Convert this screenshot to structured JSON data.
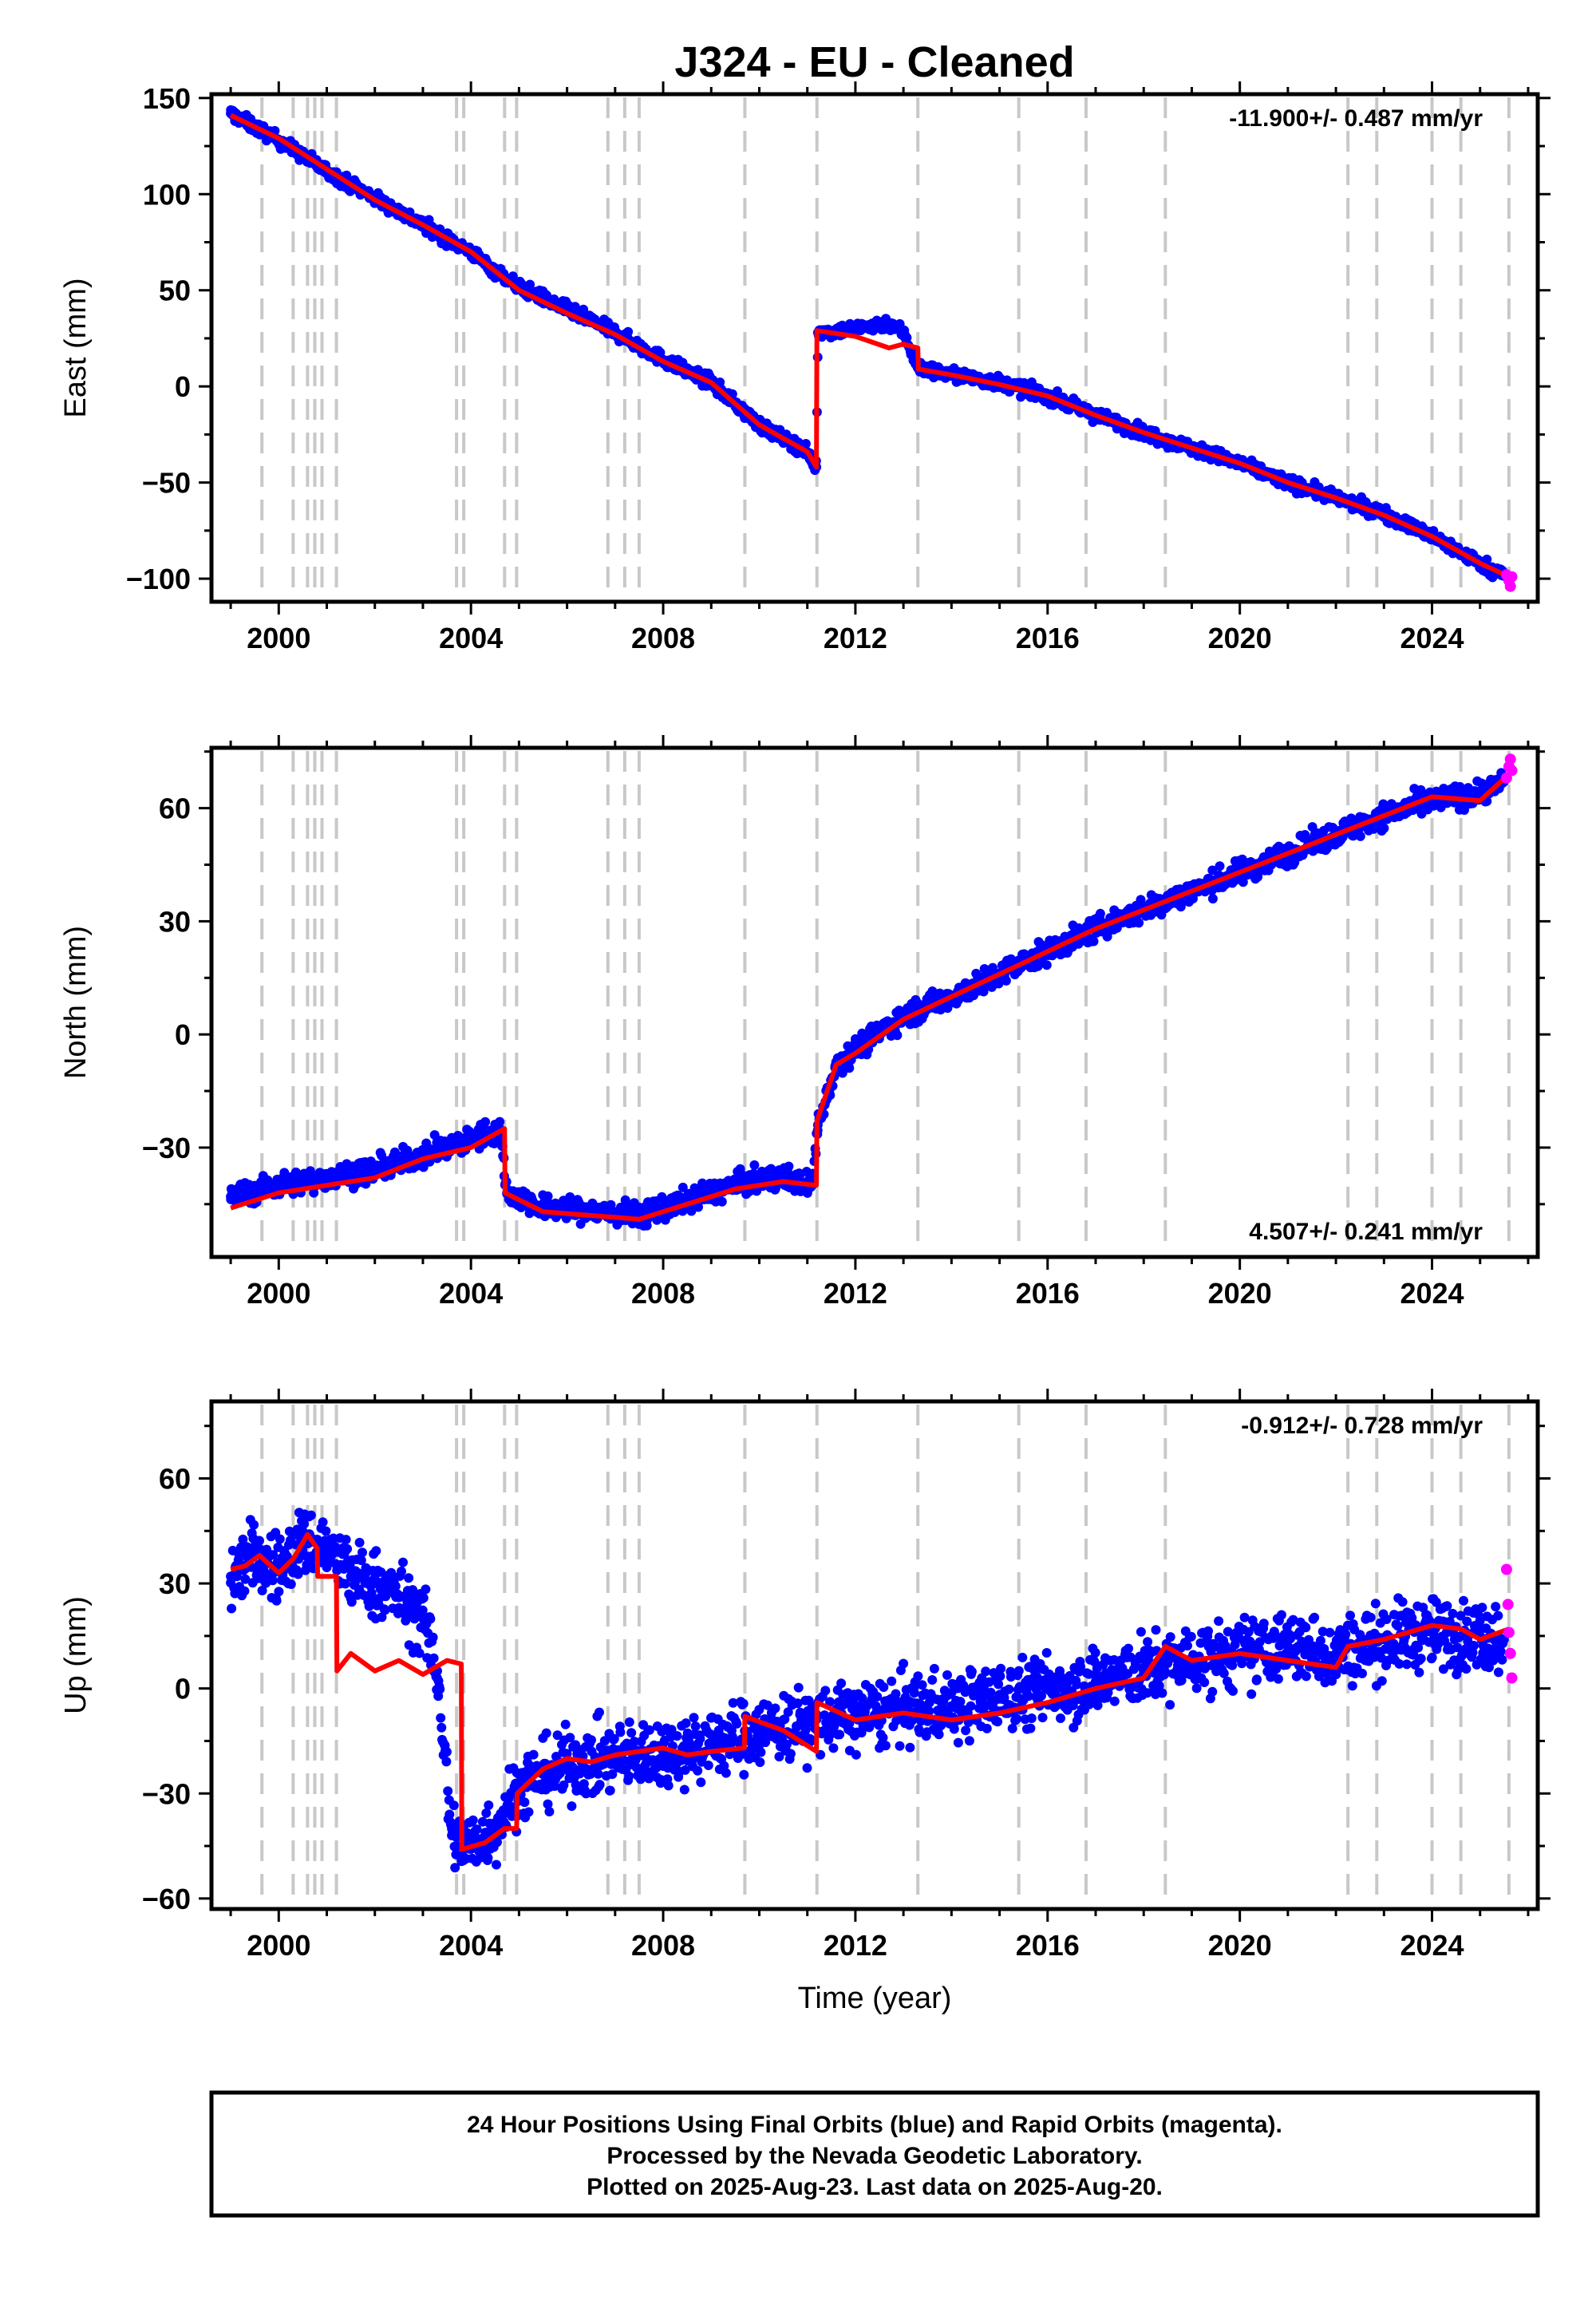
{
  "title": "J324  - EU - Cleaned",
  "xlabel": "Time (year)",
  "footer": {
    "line1": "24 Hour Positions Using Final Orbits (blue) and Rapid Orbits (magenta).",
    "line2": "Processed by the Nevada Geodetic Laboratory.",
    "line3": "Plotted on 2025-Aug-23. Last data on 2025-Aug-20."
  },
  "colors": {
    "final": "#0000ff",
    "rapid": "#ff00ff",
    "model": "#ff0000",
    "steps": "#c8c8c8"
  },
  "chart_data": [
    {
      "type": "scatter",
      "name": "east",
      "ylabel": "East (mm)",
      "rate": "-11.900+/- 0.487 mm/yr",
      "rate_position": "top-right",
      "xlim": [
        1998.6,
        2026.2
      ],
      "ylim": [
        -112,
        152
      ],
      "xticks": [
        2000,
        2004,
        2008,
        2012,
        2016,
        2020,
        2024
      ],
      "yticks": [
        -100,
        -50,
        0,
        50,
        100,
        150
      ],
      "yticklabels": [
        "−100",
        "−50",
        "0",
        "50",
        "100",
        "150"
      ],
      "step_epochs": [
        1999.65,
        2000.3,
        2000.6,
        2000.75,
        2000.9,
        2001.2,
        2003.7,
        2003.85,
        2004.7,
        2004.95,
        2006.85,
        2007.2,
        2007.5,
        2009.7,
        2011.2,
        2013.3,
        2015.4,
        2016.8,
        2018.45,
        2022.25,
        2022.85,
        2024.0,
        2024.6,
        2025.6
      ],
      "series": [
        {
          "name": "Final Orbits (blue)",
          "x": [
            1999.0,
            2000.0,
            2001.0,
            2002.0,
            2003.0,
            2004.0,
            2004.5,
            2005.0,
            2006.0,
            2007.0,
            2008.0,
            2009.0,
            2010.0,
            2011.0,
            2011.19,
            2011.22,
            2012.0,
            2012.7,
            2013.0,
            2013.3,
            2014.0,
            2015.0,
            2016.0,
            2017.0,
            2018.0,
            2019.0,
            2020.0,
            2021.0,
            2022.0,
            2023.0,
            2024.0,
            2025.0,
            2025.5
          ],
          "y": [
            142,
            128,
            112,
            98,
            84,
            70,
            60,
            52,
            40,
            28,
            14,
            2,
            -20,
            -34,
            -42,
            28,
            30,
            33,
            28,
            10,
            6,
            2,
            -5,
            -15,
            -24,
            -32,
            -40,
            -50,
            -58,
            -66,
            -78,
            -92,
            -98
          ]
        },
        {
          "name": "Rapid Orbits (magenta)",
          "x": [
            2025.55,
            2025.6,
            2025.63,
            2025.66
          ],
          "y": [
            -98,
            -101,
            -104,
            -99
          ]
        },
        {
          "name": "model",
          "x": [
            1999.0,
            2000.0,
            2001.0,
            2002.0,
            2003.0,
            2004.0,
            2004.5,
            2005.0,
            2006.0,
            2007.0,
            2008.0,
            2009.0,
            2010.0,
            2011.0,
            2011.19,
            2011.2,
            2012.0,
            2012.7,
            2013.0,
            2013.3,
            2013.31,
            2014.0,
            2015.0,
            2016.0,
            2017.0,
            2018.0,
            2019.0,
            2020.0,
            2021.0,
            2022.0,
            2023.0,
            2024.0,
            2025.0,
            2025.6
          ],
          "y": [
            141,
            129,
            113,
            97,
            84,
            70,
            60,
            50,
            38,
            27,
            13,
            2,
            -20,
            -34,
            -42,
            29,
            26,
            20,
            22,
            20,
            9,
            6,
            1,
            -5,
            -15,
            -24,
            -32,
            -40,
            -50,
            -58,
            -67,
            -78,
            -92,
            -99
          ]
        }
      ]
    },
    {
      "type": "scatter",
      "name": "north",
      "ylabel": "North (mm)",
      "rate": "4.507+/- 0.241 mm/yr",
      "rate_position": "bottom-right",
      "xlim": [
        1998.6,
        2026.2
      ],
      "ylim": [
        -59,
        76
      ],
      "xticks": [
        2000,
        2004,
        2008,
        2012,
        2016,
        2020,
        2024
      ],
      "yticks": [
        -30,
        0,
        30,
        60
      ],
      "yticklabels": [
        "−30",
        "0",
        "30",
        "60"
      ],
      "step_epochs": [
        1999.65,
        2000.3,
        2000.6,
        2000.75,
        2000.9,
        2001.2,
        2003.7,
        2003.85,
        2004.7,
        2004.95,
        2006.85,
        2007.2,
        2007.5,
        2009.7,
        2011.2,
        2013.3,
        2015.4,
        2016.8,
        2018.45,
        2022.25,
        2022.85,
        2024.0,
        2024.6,
        2025.6
      ],
      "series": [
        {
          "name": "Final Orbits (blue)",
          "x": [
            1999.0,
            2000.0,
            2001.0,
            2002.0,
            2003.0,
            2004.0,
            2004.6,
            2004.75,
            2005.5,
            2006.5,
            2007.5,
            2008.5,
            2009.5,
            2010.5,
            2011.1,
            2011.22,
            2011.6,
            2012.0,
            2013.0,
            2014.0,
            2015.0,
            2016.0,
            2017.0,
            2018.0,
            2019.0,
            2020.0,
            2021.0,
            2022.0,
            2023.0,
            2024.0,
            2025.0,
            2025.5
          ],
          "y": [
            -43,
            -40,
            -38,
            -36,
            -32,
            -28,
            -25,
            -42,
            -46,
            -47,
            -48,
            -44,
            -40,
            -38,
            -40,
            -24,
            -8,
            -4,
            5,
            10,
            16,
            22,
            28,
            33,
            38,
            43,
            48,
            53,
            58,
            62,
            64,
            67
          ]
        },
        {
          "name": "Rapid Orbits (magenta)",
          "x": [
            2025.55,
            2025.6,
            2025.63,
            2025.66
          ],
          "y": [
            68,
            71,
            73,
            70
          ]
        },
        {
          "name": "model",
          "x": [
            1999.0,
            2000.0,
            2001.0,
            2002.0,
            2003.0,
            2004.0,
            2004.7,
            2004.71,
            2005.5,
            2006.5,
            2007.5,
            2008.5,
            2009.5,
            2010.5,
            2011.19,
            2011.2,
            2011.6,
            2012.0,
            2013.0,
            2014.0,
            2015.0,
            2016.0,
            2017.0,
            2018.0,
            2019.0,
            2020.0,
            2021.0,
            2022.0,
            2023.0,
            2024.0,
            2025.0,
            2025.6
          ],
          "y": [
            -46,
            -42,
            -40,
            -38,
            -33,
            -30,
            -25,
            -42,
            -47,
            -48,
            -49,
            -45,
            -41,
            -39,
            -40,
            -23,
            -8,
            -5,
            4,
            10,
            16,
            22,
            28,
            33,
            38,
            43,
            48,
            53,
            58,
            63,
            62,
            69
          ]
        }
      ]
    },
    {
      "type": "scatter",
      "name": "up",
      "ylabel": "Up (mm)",
      "rate": "-0.912+/- 0.728 mm/yr",
      "rate_position": "top-right",
      "xlim": [
        1998.6,
        2026.2
      ],
      "ylim": [
        -63,
        82
      ],
      "xticks": [
        2000,
        2004,
        2008,
        2012,
        2016,
        2020,
        2024
      ],
      "yticks": [
        -60,
        -30,
        0,
        30,
        60
      ],
      "yticklabels": [
        "−60",
        "−30",
        "0",
        "30",
        "60"
      ],
      "step_epochs": [
        1999.65,
        2000.3,
        2000.6,
        2000.75,
        2000.9,
        2001.2,
        2003.7,
        2003.85,
        2004.7,
        2004.95,
        2006.85,
        2007.2,
        2007.5,
        2009.7,
        2011.2,
        2013.3,
        2015.4,
        2016.8,
        2018.45,
        2022.25,
        2022.85,
        2024.0,
        2024.6,
        2025.6
      ],
      "series": [
        {
          "name": "Final Orbits (blue)",
          "x": [
            1999.0,
            1999.5,
            2000.0,
            2000.5,
            2001.0,
            2001.5,
            2002.0,
            2002.5,
            2003.0,
            2003.3,
            2003.6,
            2003.9,
            2004.5,
            2005.0,
            2006.0,
            2007.0,
            2008.0,
            2009.0,
            2010.0,
            2011.0,
            2012.0,
            2013.0,
            2014.0,
            2015.0,
            2016.0,
            2017.0,
            2018.0,
            2019.0,
            2020.0,
            2021.0,
            2022.0,
            2023.0,
            2024.0,
            2025.0,
            2025.5
          ],
          "y": [
            32,
            38,
            34,
            42,
            40,
            32,
            30,
            26,
            20,
            5,
            -42,
            -45,
            -40,
            -28,
            -22,
            -20,
            -18,
            -16,
            -12,
            -10,
            -8,
            -6,
            -5,
            -3,
            0,
            2,
            5,
            8,
            10,
            12,
            10,
            14,
            16,
            15,
            14
          ]
        },
        {
          "name": "Rapid Orbits (magenta)",
          "x": [
            2025.55,
            2025.58,
            2025.6,
            2025.63,
            2025.66
          ],
          "y": [
            34,
            24,
            16,
            10,
            3
          ]
        },
        {
          "name": "model",
          "x": [
            1999.0,
            1999.3,
            1999.6,
            2000.0,
            2000.3,
            2000.6,
            2000.8,
            2000.81,
            2001.2,
            2001.21,
            2001.5,
            2002.0,
            2002.5,
            2003.0,
            2003.5,
            2003.8,
            2003.81,
            2004.3,
            2004.7,
            2004.95,
            2004.96,
            2005.5,
            2006.0,
            2006.5,
            2007.0,
            2007.5,
            2008.0,
            2008.5,
            2009.0,
            2009.69,
            2009.7,
            2010.5,
            2011.19,
            2011.2,
            2012.0,
            2013.0,
            2014.0,
            2015.0,
            2016.0,
            2017.0,
            2018.0,
            2018.45,
            2019.0,
            2020.0,
            2021.0,
            2022.0,
            2022.25,
            2023.0,
            2024.0,
            2024.6,
            2025.0,
            2025.6
          ],
          "y": [
            34,
            35,
            38,
            33,
            37,
            44,
            40,
            32,
            32,
            5,
            10,
            5,
            8,
            4,
            8,
            7,
            -46,
            -44,
            -40,
            -40,
            -30,
            -23,
            -20,
            -21,
            -19,
            -18,
            -17,
            -19,
            -18,
            -17,
            -8,
            -12,
            -18,
            -4,
            -9,
            -7,
            -9,
            -7,
            -4,
            0,
            3,
            12,
            8,
            10,
            8,
            6,
            12,
            14,
            18,
            17,
            14,
            17
          ]
        }
      ]
    }
  ]
}
